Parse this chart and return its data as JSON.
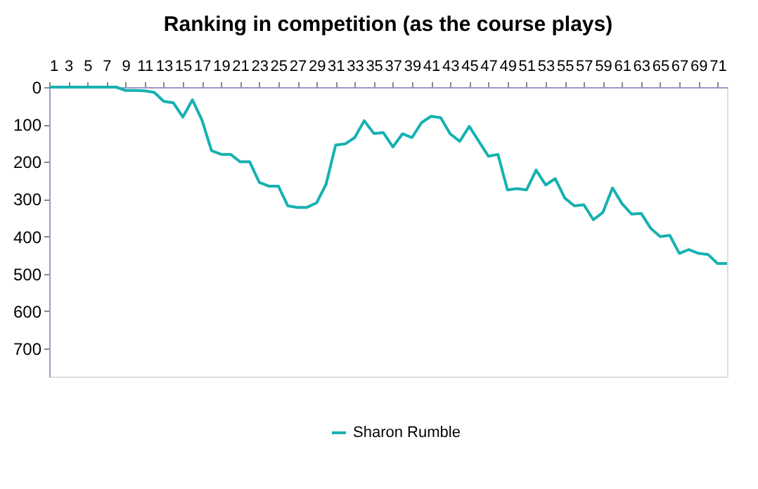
{
  "chart_data": {
    "type": "line",
    "title": "Ranking in competition (as the course plays)",
    "x": [
      1,
      2,
      3,
      4,
      5,
      6,
      7,
      8,
      9,
      10,
      11,
      12,
      13,
      14,
      15,
      16,
      17,
      18,
      19,
      20,
      21,
      22,
      23,
      24,
      25,
      26,
      27,
      28,
      29,
      30,
      31,
      32,
      33,
      34,
      35,
      36,
      37,
      38,
      39,
      40,
      41,
      42,
      43,
      44,
      45,
      46,
      47,
      48,
      49,
      50,
      51,
      52,
      53,
      54,
      55,
      56,
      57,
      58,
      59,
      60,
      61,
      62,
      63,
      64,
      65,
      66,
      67,
      68,
      69,
      70,
      71,
      72
    ],
    "series": [
      {
        "name": "Sharon Rumble",
        "color": "#17b1b1",
        "values": [
          0,
          0,
          0,
          0,
          0,
          0,
          0,
          0,
          9,
          9,
          10,
          14,
          38,
          42,
          80,
          34,
          88,
          170,
          180,
          180,
          200,
          200,
          255,
          265,
          265,
          318,
          322,
          322,
          310,
          260,
          155,
          152,
          135,
          90,
          124,
          122,
          160,
          125,
          135,
          95,
          78,
          82,
          125,
          145,
          105,
          145,
          185,
          180,
          275,
          272,
          275,
          222,
          262,
          245,
          297,
          318,
          315,
          355,
          335,
          270,
          312,
          340,
          338,
          378,
          400,
          397,
          445,
          435,
          445,
          448,
          472,
          472
        ]
      }
    ],
    "xlim": [
      1,
      72
    ],
    "xticks": [
      1,
      3,
      5,
      7,
      9,
      11,
      13,
      15,
      17,
      19,
      21,
      23,
      25,
      27,
      29,
      31,
      33,
      35,
      37,
      39,
      41,
      43,
      45,
      47,
      49,
      51,
      53,
      55,
      57,
      59,
      61,
      63,
      65,
      67,
      69,
      71
    ],
    "ylim": [
      775,
      0
    ],
    "yticks": [
      0,
      100,
      200,
      300,
      400,
      500,
      600,
      700
    ],
    "grid": false,
    "legend": "bottom",
    "marker": "none",
    "line_style": "solid"
  }
}
